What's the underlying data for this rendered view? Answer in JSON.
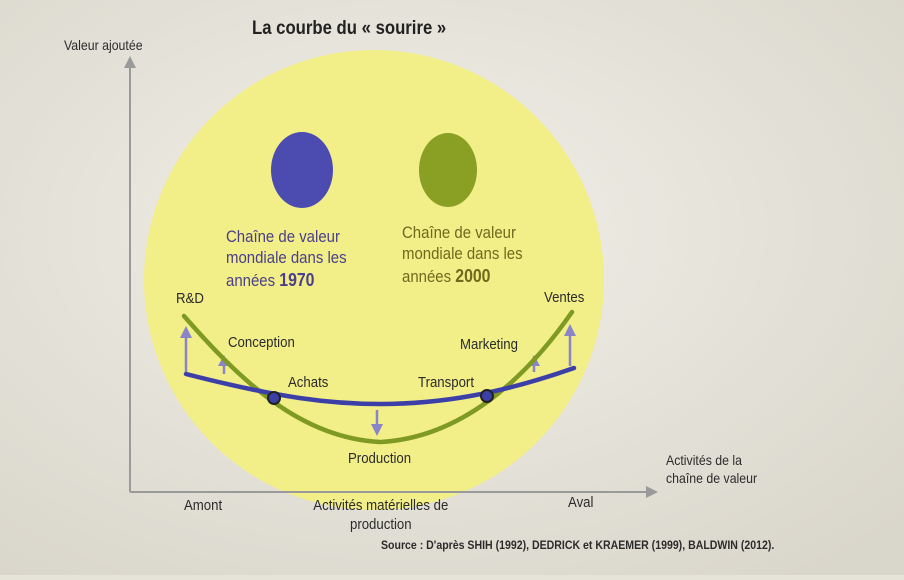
{
  "title": "La courbe du « sourire »",
  "y_axis_label": "Valeur ajoutée",
  "x_axis_label": "Activités de la chaîne de valeur",
  "left_eye": {
    "text_before": "Chaîne de valeur mondiale dans les années",
    "year": "1970",
    "color": "#4b4bb0"
  },
  "right_eye": {
    "text_before": "Chaîne de valeur mondiale dans les années",
    "year": "2000",
    "color": "#8aa024"
  },
  "stages": {
    "rd": "R&D",
    "conception": "Conception",
    "achats": "Achats",
    "production": "Production",
    "transport": "Transport",
    "marketing": "Marketing",
    "ventes": "Ventes"
  },
  "x_markers": {
    "amont": "Amont",
    "middle": "Activités matérielles de production",
    "aval": "Aval"
  },
  "source": "Source : D'après SHIH (1992), DEDRICK et KRAEMER (1999), BALDWIN (2012).",
  "colors": {
    "face": "#f2ee88",
    "curve_1970": "#3d3fa8",
    "curve_2000": "#7f9a22",
    "arrow": "#8a84c8",
    "axis": "#9a9a9a"
  }
}
